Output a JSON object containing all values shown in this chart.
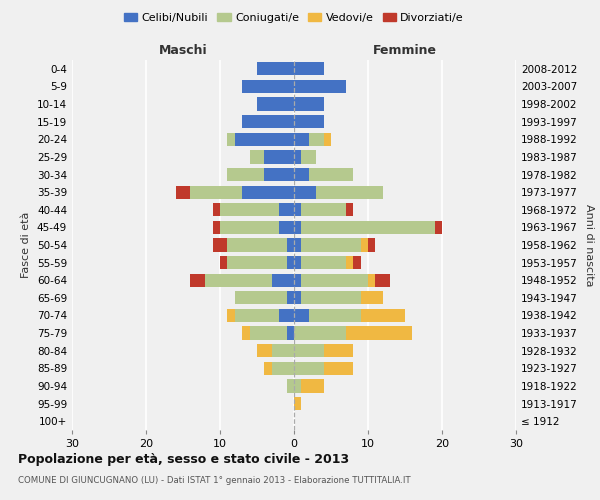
{
  "age_groups": [
    "100+",
    "95-99",
    "90-94",
    "85-89",
    "80-84",
    "75-79",
    "70-74",
    "65-69",
    "60-64",
    "55-59",
    "50-54",
    "45-49",
    "40-44",
    "35-39",
    "30-34",
    "25-29",
    "20-24",
    "15-19",
    "10-14",
    "5-9",
    "0-4"
  ],
  "birth_years": [
    "≤ 1912",
    "1913-1917",
    "1918-1922",
    "1923-1927",
    "1928-1932",
    "1933-1937",
    "1938-1942",
    "1943-1947",
    "1948-1952",
    "1953-1957",
    "1958-1962",
    "1963-1967",
    "1968-1972",
    "1973-1977",
    "1978-1982",
    "1983-1987",
    "1988-1992",
    "1993-1997",
    "1998-2002",
    "2003-2007",
    "2008-2012"
  ],
  "maschi": {
    "celibi": [
      0,
      0,
      0,
      0,
      0,
      1,
      2,
      1,
      3,
      1,
      1,
      2,
      2,
      7,
      4,
      4,
      8,
      7,
      5,
      7,
      5
    ],
    "coniugati": [
      0,
      0,
      1,
      3,
      3,
      5,
      6,
      7,
      9,
      8,
      8,
      8,
      8,
      7,
      5,
      2,
      1,
      0,
      0,
      0,
      0
    ],
    "vedovi": [
      0,
      0,
      0,
      1,
      2,
      1,
      1,
      0,
      0,
      0,
      0,
      0,
      0,
      0,
      0,
      0,
      0,
      0,
      0,
      0,
      0
    ],
    "divorziati": [
      0,
      0,
      0,
      0,
      0,
      0,
      0,
      0,
      2,
      1,
      2,
      1,
      1,
      2,
      0,
      0,
      0,
      0,
      0,
      0,
      0
    ]
  },
  "femmine": {
    "nubili": [
      0,
      0,
      0,
      0,
      0,
      0,
      2,
      1,
      1,
      1,
      1,
      1,
      1,
      3,
      2,
      1,
      2,
      4,
      4,
      7,
      4
    ],
    "coniugate": [
      0,
      0,
      1,
      4,
      4,
      7,
      7,
      8,
      9,
      6,
      8,
      18,
      6,
      9,
      6,
      2,
      2,
      0,
      0,
      0,
      0
    ],
    "vedove": [
      0,
      1,
      3,
      4,
      4,
      9,
      6,
      3,
      1,
      1,
      1,
      0,
      0,
      0,
      0,
      0,
      1,
      0,
      0,
      0,
      0
    ],
    "divorziate": [
      0,
      0,
      0,
      0,
      0,
      0,
      0,
      0,
      2,
      1,
      1,
      1,
      1,
      0,
      0,
      0,
      0,
      0,
      0,
      0,
      0
    ]
  },
  "colors": {
    "celibi_nubili": "#4472c4",
    "coniugati": "#b5c98e",
    "vedovi": "#f0b842",
    "divorziati": "#c0392b"
  },
  "title": "Popolazione per età, sesso e stato civile - 2013",
  "subtitle": "COMUNE DI GIUNCUGNANO (LU) - Dati ISTAT 1° gennaio 2013 - Elaborazione TUTTITALIA.IT",
  "xlabel_left": "Maschi",
  "xlabel_right": "Femmine",
  "ylabel_left": "Fasce di età",
  "ylabel_right": "Anni di nascita",
  "xlim": 30,
  "bg_color": "#f0f0f0",
  "legend_labels": [
    "Celibi/Nubili",
    "Coniugati/e",
    "Vedovi/e",
    "Divorziati/e"
  ]
}
